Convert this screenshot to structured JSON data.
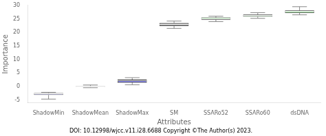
{
  "chart_data": {
    "type": "box",
    "categories": [
      "ShadowMin",
      "ShadowMean",
      "ShadowMax",
      "SM",
      "SSARo52",
      "SSARo60",
      "dsDNA"
    ],
    "boxes": [
      {
        "q1": -3.1,
        "median": -2.7,
        "q3": -2.4,
        "whisker_low": -4.6,
        "whisker_high": -2.1
      },
      {
        "q1": -0.15,
        "median": 0.0,
        "q3": 0.15,
        "whisker_low": -0.4,
        "whisker_high": 0.6
      },
      {
        "q1": 1.5,
        "median": 2.1,
        "q3": 2.6,
        "whisker_low": 0.7,
        "whisker_high": 3.3
      },
      {
        "q1": 22.4,
        "median": 23.0,
        "q3": 23.5,
        "whisker_low": 21.5,
        "whisker_high": 24.2
      },
      {
        "q1": 24.7,
        "median": 25.1,
        "q3": 25.5,
        "whisker_low": 24.0,
        "whisker_high": 26.0
      },
      {
        "q1": 25.8,
        "median": 26.2,
        "q3": 26.6,
        "whisker_low": 25.2,
        "whisker_high": 27.3
      },
      {
        "q1": 27.2,
        "median": 27.7,
        "q3": 28.1,
        "whisker_low": 26.5,
        "whisker_high": 29.5
      }
    ],
    "colors": [
      "#0000cc",
      "#1a1a1a",
      "#0000cc",
      "#333333",
      "#00bb00",
      "#00bb00",
      "#00bb00"
    ],
    "xlabel": "Attributes",
    "ylabel": "Importance",
    "ylim": [
      -6,
      30
    ],
    "yticks": [
      -5,
      0,
      5,
      10,
      15,
      20,
      25,
      30
    ],
    "grid": false,
    "annotation": "DOI: 10.12998/wjcc.v11.i28.6688 Copyright ©The Author(s) 2023."
  }
}
